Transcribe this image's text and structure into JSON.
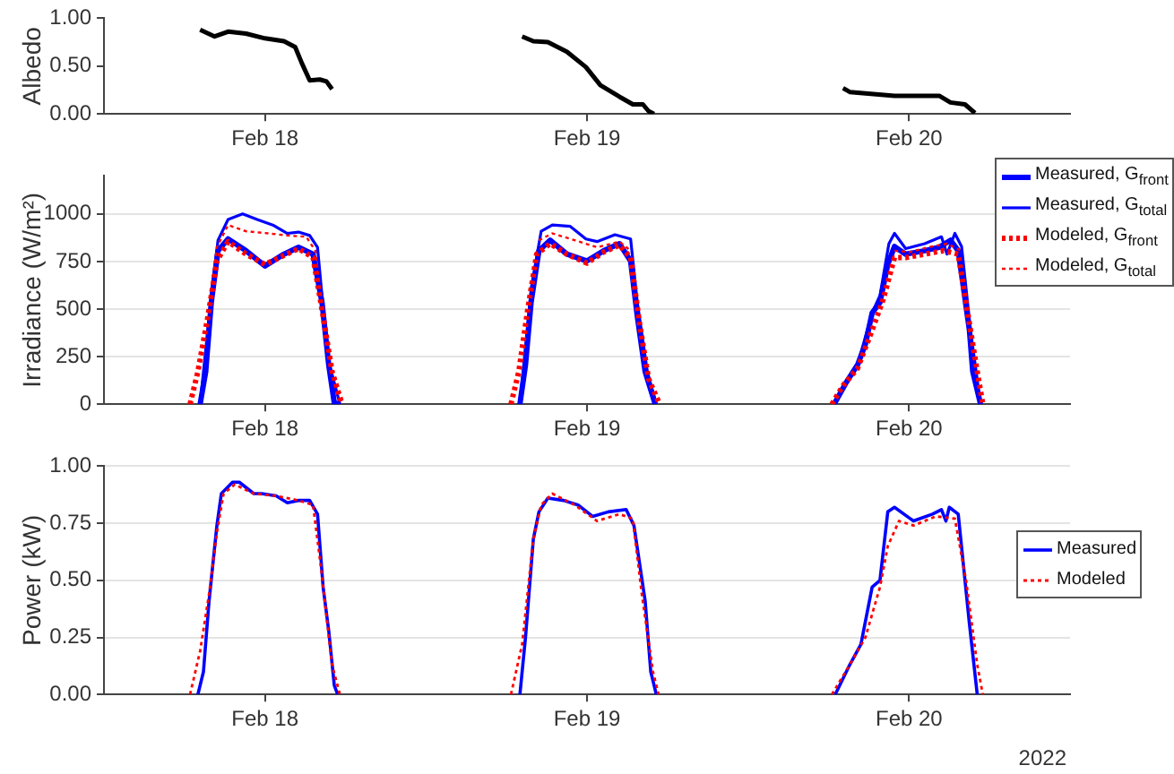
{
  "chart_data": [
    {
      "type": "line",
      "ylabel": "Albedo",
      "xlim": [
        "2022-02-18",
        "2022-02-21"
      ],
      "xticks": [
        {
          "value": "2022-02-18T12:00",
          "label": "Feb 18"
        },
        {
          "value": "2022-02-19T12:00",
          "label": "Feb 19"
        },
        {
          "value": "2022-02-20T12:00",
          "label": "Feb 20"
        }
      ],
      "ylim": [
        0,
        1
      ],
      "yticks": [
        {
          "value": 0,
          "label": "0.00"
        },
        {
          "value": 0.5,
          "label": "0.50"
        },
        {
          "value": 1,
          "label": "1.00"
        }
      ],
      "series": [
        {
          "color": "#000000",
          "line_style": "solid",
          "x": [
            "2022-02-18T07:10",
            "2022-02-18T08:15",
            "2022-02-18T09:15",
            "2022-02-18T10:35",
            "2022-02-18T12:00",
            "2022-02-18T13:25",
            "2022-02-18T14:15",
            "2022-02-18T14:45",
            "2022-02-18T15:20",
            "2022-02-18T16:05",
            "2022-02-18T16:35",
            "2022-02-18T17:00",
            "2022-02-19T00:00",
            "2022-02-19T07:10",
            "2022-02-19T08:00",
            "2022-02-19T09:05",
            "2022-02-19T10:30",
            "2022-02-19T11:55",
            "2022-02-19T13:00",
            "2022-02-19T14:25",
            "2022-02-19T15:25",
            "2022-02-19T16:10",
            "2022-02-19T16:35",
            "2022-02-19T17:00",
            "2022-02-20T00:00",
            "2022-02-20T07:05",
            "2022-02-20T07:35",
            "2022-02-20T10:55",
            "2022-02-20T14:15",
            "2022-02-20T15:05",
            "2022-02-20T16:10",
            "2022-02-20T16:55"
          ],
          "values": [
            0.88,
            0.81,
            0.86,
            0.84,
            0.79,
            0.76,
            0.7,
            0.53,
            0.35,
            0.36,
            0.34,
            0.26,
            null,
            0.81,
            0.76,
            0.75,
            0.65,
            0.49,
            0.3,
            0.18,
            0.1,
            0.1,
            0.03,
            0.0,
            null,
            0.27,
            0.23,
            0.19,
            0.19,
            0.12,
            0.1,
            0.01
          ]
        }
      ]
    },
    {
      "type": "line",
      "ylabel": "Irradiance (W/m²)",
      "xlim": [
        "2022-02-18",
        "2022-02-21"
      ],
      "xticks": [
        {
          "value": "2022-02-18T12:00",
          "label": "Feb 18"
        },
        {
          "value": "2022-02-19T12:00",
          "label": "Feb 19"
        },
        {
          "value": "2022-02-20T12:00",
          "label": "Feb 20"
        }
      ],
      "ylim": [
        0,
        1200
      ],
      "yticks": [
        0,
        250,
        500,
        750,
        1000
      ],
      "grid": "y",
      "legend": "top right",
      "series": [
        {
          "name": "Measured, G$_{front}$",
          "color": "#0000ff",
          "line_style": "solid",
          "x": [
            "2022-02-18T07:10",
            "2022-02-18T07:35",
            "2022-02-18T08:00",
            "2022-02-18T08:30",
            "2022-02-18T09:15",
            "2022-02-18T10:35",
            "2022-02-18T12:00",
            "2022-02-18T13:25",
            "2022-02-18T14:30",
            "2022-02-18T15:35",
            "2022-02-18T16:15",
            "2022-02-18T16:45",
            "2022-02-18T17:10",
            "2022-02-18T17:35",
            "2022-02-19T00:00",
            "2022-02-19T07:00",
            "2022-02-19T07:25",
            "2022-02-19T07:50",
            "2022-02-19T08:25",
            "2022-02-19T09:15",
            "2022-02-19T10:30",
            "2022-02-19T12:00",
            "2022-02-19T13:15",
            "2022-02-19T14:25",
            "2022-02-19T15:15",
            "2022-02-19T15:45",
            "2022-02-19T16:20",
            "2022-02-19T17:05",
            "2022-02-20T00:00",
            "2022-02-20T06:25",
            "2022-02-20T07:20",
            "2022-02-20T08:10",
            "2022-02-20T08:45",
            "2022-02-20T09:15",
            "2022-02-20T09:50",
            "2022-02-20T10:25",
            "2022-02-20T10:55",
            "2022-02-20T11:45",
            "2022-02-20T13:10",
            "2022-02-20T14:15",
            "2022-02-20T15:05",
            "2022-02-20T15:40",
            "2022-02-20T16:30",
            "2022-02-20T16:45",
            "2022-02-20T17:20"
          ],
          "values": [
            0,
            171,
            535,
            807,
            869,
            807,
            727,
            789,
            825,
            789,
            535,
            207,
            7,
            0,
            null,
            0,
            207,
            535,
            807,
            862,
            789,
            753,
            807,
            844,
            753,
            462,
            171,
            0,
            null,
            0,
            116,
            207,
            316,
            480,
            535,
            735,
            829,
            789,
            807,
            825,
            862,
            807,
            389,
            171,
            0
          ]
        },
        {
          "name": "Measured, G$_{total}$",
          "color": "#0000ff",
          "line_style": "solid",
          "x": [
            "2022-02-18T07:10",
            "2022-02-18T08:00",
            "2022-02-18T08:30",
            "2022-02-18T09:15",
            "2022-02-18T10:20",
            "2022-02-18T11:25",
            "2022-02-18T12:35",
            "2022-02-18T13:40",
            "2022-02-18T14:30",
            "2022-02-18T15:20",
            "2022-02-18T15:55",
            "2022-02-18T16:15",
            "2022-02-18T16:45",
            "2022-02-18T17:35",
            "2022-02-19T00:00",
            "2022-02-19T07:00",
            "2022-02-19T07:50",
            "2022-02-19T08:35",
            "2022-02-19T09:25",
            "2022-02-19T10:45",
            "2022-02-19T11:55",
            "2022-02-19T12:45",
            "2022-02-19T14:05",
            "2022-02-19T15:15",
            "2022-02-19T15:45",
            "2022-02-19T16:30",
            "2022-02-19T17:10",
            "2022-02-20T00:00",
            "2022-02-20T06:25",
            "2022-02-20T08:10",
            "2022-02-20T09:15",
            "2022-02-20T09:50",
            "2022-02-20T10:30",
            "2022-02-20T10:55",
            "2022-02-20T11:45",
            "2022-02-20T13:10",
            "2022-02-20T14:25",
            "2022-02-20T14:50",
            "2022-02-20T15:25",
            "2022-02-20T15:55",
            "2022-02-20T16:35",
            "2022-02-20T17:20"
          ],
          "values": [
            0,
            571,
            862,
            971,
            1000,
            971,
            942,
            898,
            905,
            887,
            825,
            571,
            225,
            0,
            null,
            0,
            607,
            909,
            942,
            935,
            869,
            855,
            891,
            869,
            535,
            171,
            0,
            null,
            0,
            207,
            480,
            571,
            844,
            898,
            818,
            844,
            880,
            789,
            898,
            829,
            389,
            0
          ]
        },
        {
          "name": "Modeled, G$_{front}$",
          "color": "#ff0000",
          "line_style": "dotted",
          "x": [
            "2022-02-18T06:25",
            "2022-02-18T07:00",
            "2022-02-18T07:45",
            "2022-02-18T08:25",
            "2022-02-18T09:15",
            "2022-02-18T10:35",
            "2022-02-18T12:00",
            "2022-02-18T13:25",
            "2022-02-18T14:30",
            "2022-02-18T15:35",
            "2022-02-18T16:15",
            "2022-02-18T17:00",
            "2022-02-18T17:45",
            "2022-02-19T00:00",
            "2022-02-19T06:20",
            "2022-02-19T06:55",
            "2022-02-19T07:35",
            "2022-02-19T08:15",
            "2022-02-19T09:15",
            "2022-02-19T10:30",
            "2022-02-19T12:00",
            "2022-02-19T13:15",
            "2022-02-19T14:25",
            "2022-02-19T15:15",
            "2022-02-19T15:55",
            "2022-02-19T16:35",
            "2022-02-19T17:25",
            "2022-02-20T00:00",
            "2022-02-20T06:15",
            "2022-02-20T07:05",
            "2022-02-20T08:10",
            "2022-02-20T09:15",
            "2022-02-20T10:05",
            "2022-02-20T10:55",
            "2022-02-20T11:45",
            "2022-02-20T13:10",
            "2022-02-20T14:35",
            "2022-02-20T15:40",
            "2022-02-20T16:30",
            "2022-02-20T17:05",
            "2022-02-20T17:30"
          ],
          "values": [
            0,
            171,
            462,
            753,
            855,
            789,
            735,
            782,
            818,
            771,
            498,
            171,
            0,
            null,
            0,
            171,
            498,
            789,
            844,
            789,
            742,
            800,
            836,
            771,
            425,
            135,
            0,
            null,
            0,
            98,
            189,
            389,
            553,
            771,
            771,
            789,
            807,
            789,
            425,
            171,
            0
          ]
        },
        {
          "name": "Modeled, G$_{total}$",
          "color": "#ff0000",
          "line_style": "dotted",
          "x": [
            "2022-02-18T06:25",
            "2022-02-18T07:00",
            "2022-02-18T07:45",
            "2022-02-18T08:25",
            "2022-02-18T09:15",
            "2022-02-18T10:35",
            "2022-02-18T12:15",
            "2022-02-18T13:40",
            "2022-02-18T15:05",
            "2022-02-18T15:45",
            "2022-02-18T16:15",
            "2022-02-18T17:00",
            "2022-02-18T17:45",
            "2022-02-19T00:00",
            "2022-02-19T08:25",
            "2022-02-19T09:25",
            "2022-02-19T11:05",
            "2022-02-19T12:45",
            "2022-02-19T14:25",
            "2022-02-19T15:15",
            "2022-02-20T00:00",
            "2022-02-20T10:55",
            "2022-02-20T12:05",
            "2022-02-20T13:25",
            "2022-02-20T14:50",
            "2022-02-20T15:55"
          ],
          "values": [
            0,
            171,
            462,
            825,
            942,
            909,
            898,
            887,
            880,
            807,
            516,
            171,
            0,
            null,
            862,
            898,
            862,
            825,
            855,
            807,
            null,
            807,
            800,
            825,
            844,
            807
          ]
        }
      ]
    },
    {
      "type": "line",
      "ylabel": "Power (kW)",
      "xlim": [
        "2022-02-18",
        "2022-02-21"
      ],
      "xticks": [
        {
          "value": "2022-02-18T12:00",
          "label": "Feb 18"
        },
        {
          "value": "2022-02-19T12:00",
          "label": "Feb 19"
        },
        {
          "value": "2022-02-20T12:00",
          "label": "Feb 20"
        }
      ],
      "ylim": [
        0,
        1
      ],
      "yticks": [
        {
          "value": 0,
          "label": "0.00"
        },
        {
          "value": 0.25,
          "label": "0.25"
        },
        {
          "value": 0.5,
          "label": "0.50"
        },
        {
          "value": 0.75,
          "label": "0.75"
        },
        {
          "value": 1,
          "label": "1.00"
        }
      ],
      "grid": "y",
      "legend": "right",
      "annotations": [
        "2022"
      ],
      "series": [
        {
          "name": "Measured",
          "color": "#0000ff",
          "line_style": "solid",
          "x": [
            "2022-02-18T07:00",
            "2022-02-18T07:25",
            "2022-02-18T07:50",
            "2022-02-18T08:25",
            "2022-02-18T08:45",
            "2022-02-18T09:35",
            "2022-02-18T10:05",
            "2022-02-18T11:10",
            "2022-02-18T11:45",
            "2022-02-18T12:50",
            "2022-02-18T13:40",
            "2022-02-18T14:30",
            "2022-02-18T15:20",
            "2022-02-18T15:55",
            "2022-02-18T16:20",
            "2022-02-18T16:45",
            "2022-02-18T17:10",
            "2022-02-18T17:25",
            "2022-02-19T00:00",
            "2022-02-19T07:00",
            "2022-02-19T07:25",
            "2022-02-19T08:00",
            "2022-02-19T08:25",
            "2022-02-19T09:05",
            "2022-02-19T10:15",
            "2022-02-19T11:20",
            "2022-02-19T12:25",
            "2022-02-19T13:35",
            "2022-02-19T14:55",
            "2022-02-19T15:30",
            "2022-02-19T16:20",
            "2022-02-19T16:45",
            "2022-02-19T17:10",
            "2022-02-20T00:00",
            "2022-02-20T06:30",
            "2022-02-20T07:35",
            "2022-02-20T08:25",
            "2022-02-20T09:15",
            "2022-02-20T09:50",
            "2022-02-20T10:25",
            "2022-02-20T10:55",
            "2022-02-20T12:20",
            "2022-02-20T13:45",
            "2022-02-20T14:25",
            "2022-02-20T14:45",
            "2022-02-20T15:00",
            "2022-02-20T15:40",
            "2022-02-20T16:30",
            "2022-02-20T17:05"
          ],
          "values": [
            0,
            0.1,
            0.41,
            0.74,
            0.88,
            0.93,
            0.93,
            0.88,
            0.88,
            0.87,
            0.84,
            0.85,
            0.85,
            0.79,
            0.47,
            0.28,
            0.04,
            0,
            null,
            0,
            0.25,
            0.68,
            0.8,
            0.86,
            0.85,
            0.83,
            0.78,
            0.8,
            0.81,
            0.74,
            0.41,
            0.1,
            0,
            null,
            0,
            0.13,
            0.22,
            0.47,
            0.5,
            0.8,
            0.82,
            0.76,
            0.79,
            0.81,
            0.76,
            0.82,
            0.79,
            0.31,
            0
          ]
        },
        {
          "name": "Modeled",
          "color": "#ff0000",
          "line_style": "dotted",
          "x": [
            "2022-02-18T06:25",
            "2022-02-18T07:10",
            "2022-02-18T07:50",
            "2022-02-18T08:25",
            "2022-02-18T08:55",
            "2022-02-18T09:45",
            "2022-02-18T11:10",
            "2022-02-18T12:50",
            "2022-02-18T14:30",
            "2022-02-18T15:35",
            "2022-02-18T16:10",
            "2022-02-18T17:00",
            "2022-02-18T17:35",
            "2022-02-19T00:00",
            "2022-02-19T06:20",
            "2022-02-19T07:10",
            "2022-02-19T08:00",
            "2022-02-19T08:35",
            "2022-02-19T09:25",
            "2022-02-19T11:05",
            "2022-02-19T12:45",
            "2022-02-19T14:25",
            "2022-02-19T15:25",
            "2022-02-19T16:05",
            "2022-02-19T16:55",
            "2022-02-19T17:20",
            "2022-02-20T00:00",
            "2022-02-20T06:15",
            "2022-02-20T07:35",
            "2022-02-20T08:45",
            "2022-02-20T09:50",
            "2022-02-20T10:25",
            "2022-02-20T11:15",
            "2022-02-20T12:20",
            "2022-02-20T14:00",
            "2022-02-20T15:25",
            "2022-02-20T16:15",
            "2022-02-20T17:05",
            "2022-02-20T17:30"
          ],
          "values": [
            0,
            0.19,
            0.44,
            0.71,
            0.88,
            0.92,
            0.88,
            0.87,
            0.85,
            0.83,
            0.56,
            0.13,
            0,
            null,
            0,
            0.22,
            0.68,
            0.83,
            0.88,
            0.83,
            0.76,
            0.79,
            0.77,
            0.44,
            0.1,
            0,
            null,
            0,
            0.13,
            0.25,
            0.47,
            0.65,
            0.76,
            0.74,
            0.78,
            0.77,
            0.5,
            0.13,
            0
          ]
        }
      ]
    }
  ]
}
